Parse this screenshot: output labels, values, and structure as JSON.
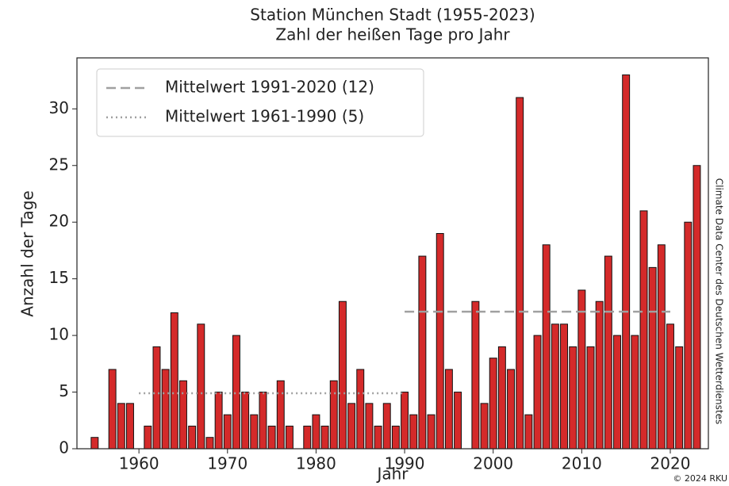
{
  "chart_data": {
    "type": "bar",
    "title": "Station München Stadt (1955-2023)",
    "subtitle": "Zahl der heißen Tage pro Jahr",
    "x_label": "Jahr",
    "y_label": "Anzahl der Tage",
    "side_note": "Climate Data Center des Deutschen Wetterdienstes",
    "credit": "© 2024 RKU",
    "color": "#d42a2a",
    "x": [
      1955,
      1956,
      1957,
      1958,
      1959,
      1960,
      1961,
      1962,
      1963,
      1964,
      1965,
      1966,
      1967,
      1968,
      1969,
      1970,
      1971,
      1972,
      1973,
      1974,
      1975,
      1976,
      1977,
      1978,
      1979,
      1980,
      1981,
      1982,
      1983,
      1984,
      1985,
      1986,
      1987,
      1988,
      1989,
      1990,
      1991,
      1992,
      1993,
      1994,
      1995,
      1996,
      1997,
      1998,
      1999,
      2000,
      2001,
      2002,
      2003,
      2004,
      2005,
      2006,
      2007,
      2008,
      2009,
      2010,
      2011,
      2012,
      2013,
      2014,
      2015,
      2016,
      2017,
      2018,
      2019,
      2020,
      2021,
      2022,
      2023
    ],
    "values": [
      1,
      0,
      7,
      4,
      4,
      0,
      2,
      9,
      7,
      12,
      6,
      2,
      11,
      1,
      5,
      3,
      10,
      5,
      3,
      5,
      2,
      6,
      2,
      0,
      2,
      3,
      2,
      6,
      13,
      4,
      7,
      4,
      2,
      4,
      2,
      5,
      3,
      17,
      3,
      19,
      7,
      5,
      0,
      13,
      4,
      8,
      9,
      7,
      31,
      3,
      10,
      18,
      11,
      11,
      9,
      14,
      9,
      13,
      17,
      10,
      33,
      10,
      21,
      16,
      18,
      11,
      9,
      20,
      25
    ],
    "reference_lines": [
      {
        "name": "Mittelwert 1991-2020 (12)",
        "value": 12.1,
        "x": [
          1990,
          2020
        ],
        "color": "#a0a0a0",
        "dash": "dashed"
      },
      {
        "name": "Mittelwert 1961-1990 (5)",
        "value": 4.9,
        "x": [
          1960,
          1990
        ],
        "color": "#a0a0a0",
        "dash": "dotted"
      }
    ],
    "xlim": [
      1953,
      2024.3
    ],
    "ylim": [
      0,
      34.5
    ],
    "xticks": [
      1960,
      1970,
      1980,
      1990,
      2000,
      2010,
      2020
    ],
    "yticks": [
      0,
      5,
      10,
      15,
      20,
      25,
      30
    ],
    "legend": "upper left"
  }
}
